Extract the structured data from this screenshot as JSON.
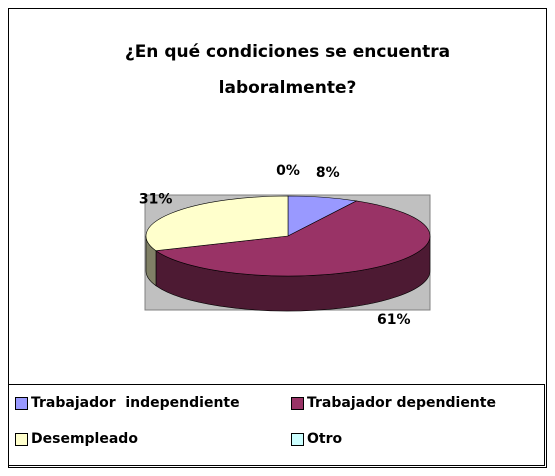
{
  "chart_data": {
    "type": "pie",
    "title": "¿En qué condiciones se encuentra laboralmente?",
    "categories": [
      "Trabajador  independiente",
      "Trabajador dependiente",
      "Desempleado",
      "Otro"
    ],
    "values": [
      8,
      61,
      31,
      0
    ],
    "value_labels": [
      "8%",
      "61%",
      "31%",
      "0%"
    ],
    "colors": [
      "#9999ff",
      "#993366",
      "#ffffcc",
      "#ccffff"
    ],
    "legend": "bottom"
  }
}
